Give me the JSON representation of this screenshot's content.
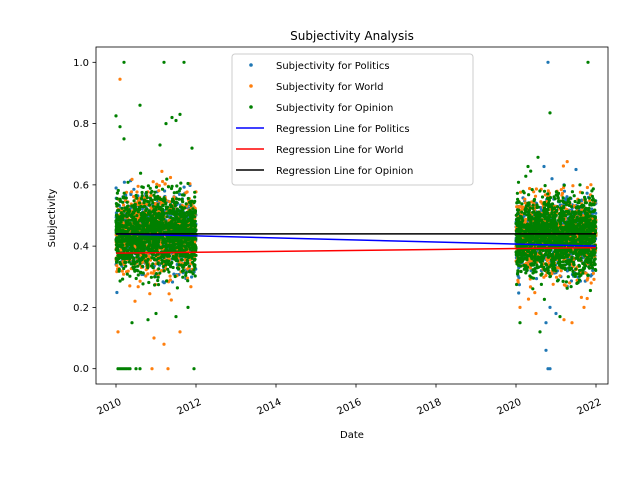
{
  "chart_data": {
    "type": "scatter",
    "title": "Subjectivity Analysis",
    "xlabel": "Date",
    "ylabel": "Subjectivity",
    "xlim": [
      2009.5,
      2022.3
    ],
    "ylim": [
      -0.05,
      1.05
    ],
    "xticks": [
      "2010",
      "2012",
      "2014",
      "2016",
      "2018",
      "2020",
      "2022"
    ],
    "xtick_values": [
      2010,
      2012,
      2014,
      2016,
      2018,
      2020,
      2022
    ],
    "yticks": [
      "0.0",
      "0.2",
      "0.4",
      "0.6",
      "0.8",
      "1.0"
    ],
    "ytick_values": [
      0.0,
      0.2,
      0.4,
      0.6,
      0.8,
      1.0
    ],
    "legend_position": "top-center",
    "grid": false,
    "clusters": [
      {
        "x_range": [
          2010.0,
          2012.0
        ],
        "core_range": [
          0.3,
          0.58
        ],
        "center": 0.44
      },
      {
        "x_range": [
          2020.0,
          2022.0
        ],
        "core_range": [
          0.3,
          0.58
        ],
        "center": 0.43
      }
    ],
    "series": [
      {
        "name": "Subjectivity for Politics",
        "kind": "scatter",
        "color": "#1f77b4",
        "outliers": [
          {
            "x": 2020.8,
            "y": 1.0
          },
          {
            "x": 2020.75,
            "y": 0.06
          },
          {
            "x": 2020.8,
            "y": 0.0
          },
          {
            "x": 2020.85,
            "y": 0.0
          },
          {
            "x": 2020.75,
            "y": 0.15
          },
          {
            "x": 2021.5,
            "y": 0.65
          },
          {
            "x": 2020.7,
            "y": 0.66
          },
          {
            "x": 2020.85,
            "y": 0.2
          },
          {
            "x": 2021.0,
            "y": 0.18
          },
          {
            "x": 2020.9,
            "y": 0.62
          },
          {
            "x": 2021.2,
            "y": 0.6
          }
        ]
      },
      {
        "name": "Subjectivity for World",
        "kind": "scatter",
        "color": "#ff7f0e",
        "outliers": [
          {
            "x": 2010.1,
            "y": 0.945
          },
          {
            "x": 2010.05,
            "y": 0.12
          },
          {
            "x": 2010.9,
            "y": 0.0
          },
          {
            "x": 2011.2,
            "y": 0.08
          },
          {
            "x": 2011.6,
            "y": 0.12
          },
          {
            "x": 2011.3,
            "y": 0.0
          },
          {
            "x": 2010.95,
            "y": 0.1
          },
          {
            "x": 2020.1,
            "y": 0.2
          },
          {
            "x": 2021.4,
            "y": 0.15
          },
          {
            "x": 2021.2,
            "y": 0.16
          },
          {
            "x": 2020.5,
            "y": 0.18
          },
          {
            "x": 2021.7,
            "y": 0.2
          }
        ]
      },
      {
        "name": "Subjectivity for Opinion",
        "kind": "scatter",
        "color": "#008000",
        "outliers": [
          {
            "x": 2010.05,
            "y": 0.0
          },
          {
            "x": 2010.1,
            "y": 0.0
          },
          {
            "x": 2010.15,
            "y": 0.0
          },
          {
            "x": 2010.2,
            "y": 0.0
          },
          {
            "x": 2010.25,
            "y": 0.0
          },
          {
            "x": 2010.3,
            "y": 0.0
          },
          {
            "x": 2010.35,
            "y": 0.0
          },
          {
            "x": 2010.5,
            "y": 0.0
          },
          {
            "x": 2010.6,
            "y": 0.0
          },
          {
            "x": 2011.95,
            "y": 0.0
          },
          {
            "x": 2010.2,
            "y": 1.0
          },
          {
            "x": 2011.2,
            "y": 1.0
          },
          {
            "x": 2011.7,
            "y": 1.0
          },
          {
            "x": 2010.6,
            "y": 0.86
          },
          {
            "x": 2010.0,
            "y": 0.825
          },
          {
            "x": 2010.1,
            "y": 0.79
          },
          {
            "x": 2011.4,
            "y": 0.82
          },
          {
            "x": 2011.6,
            "y": 0.83
          },
          {
            "x": 2011.5,
            "y": 0.81
          },
          {
            "x": 2011.25,
            "y": 0.8
          },
          {
            "x": 2010.2,
            "y": 0.75
          },
          {
            "x": 2011.9,
            "y": 0.72
          },
          {
            "x": 2011.1,
            "y": 0.73
          },
          {
            "x": 2010.4,
            "y": 0.15
          },
          {
            "x": 2010.8,
            "y": 0.16
          },
          {
            "x": 2011.0,
            "y": 0.18
          },
          {
            "x": 2011.5,
            "y": 0.17
          },
          {
            "x": 2011.8,
            "y": 0.2
          },
          {
            "x": 2021.8,
            "y": 1.0
          },
          {
            "x": 2020.85,
            "y": 0.835
          },
          {
            "x": 2020.55,
            "y": 0.69
          },
          {
            "x": 2020.1,
            "y": 0.15
          },
          {
            "x": 2020.6,
            "y": 0.12
          },
          {
            "x": 2021.1,
            "y": 0.17
          },
          {
            "x": 2020.3,
            "y": 0.66
          },
          {
            "x": 2021.6,
            "y": 0.6
          }
        ]
      },
      {
        "name": "Regression Line for Politics",
        "kind": "line",
        "color": "#0000ff",
        "x": [
          2010.0,
          2022.0
        ],
        "y": [
          0.44,
          0.4
        ]
      },
      {
        "name": "Regression Line for World",
        "kind": "line",
        "color": "#ff0000",
        "x": [
          2010.0,
          2022.0
        ],
        "y": [
          0.377,
          0.395
        ]
      },
      {
        "name": "Regression Line for Opinion",
        "kind": "line",
        "color": "#000000",
        "x": [
          2010.0,
          2022.0
        ],
        "y": [
          0.44,
          0.44
        ]
      }
    ]
  }
}
